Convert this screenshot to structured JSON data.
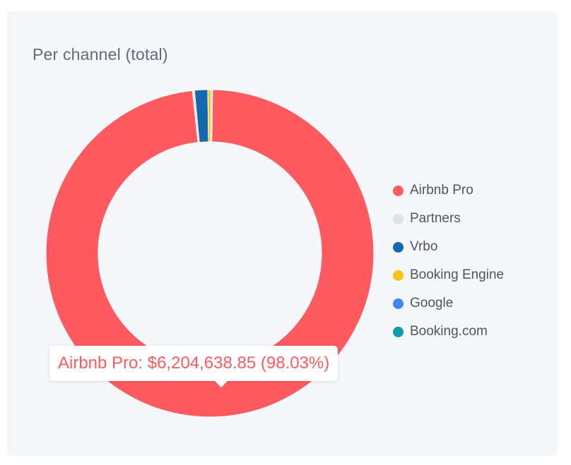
{
  "chart_data": {
    "type": "pie",
    "title": "Per channel (total)",
    "categories": [
      "Airbnb Pro",
      "Partners",
      "Vrbo",
      "Booking Engine",
      "Google",
      "Booking.com"
    ],
    "series": [
      {
        "values": [
          98.03,
          0.2,
          1.3,
          0.32,
          0.1,
          0.05
        ]
      }
    ],
    "colors": [
      "#ff5a5f",
      "#e2e2e2",
      "#1468b0",
      "#f5c518",
      "#4285f4",
      "#0f9aae"
    ],
    "legend_position": "right",
    "tooltip": {
      "text": "Airbnb Pro: $6,204,638.85 (98.03%)",
      "color": "#ff5a5f"
    }
  }
}
